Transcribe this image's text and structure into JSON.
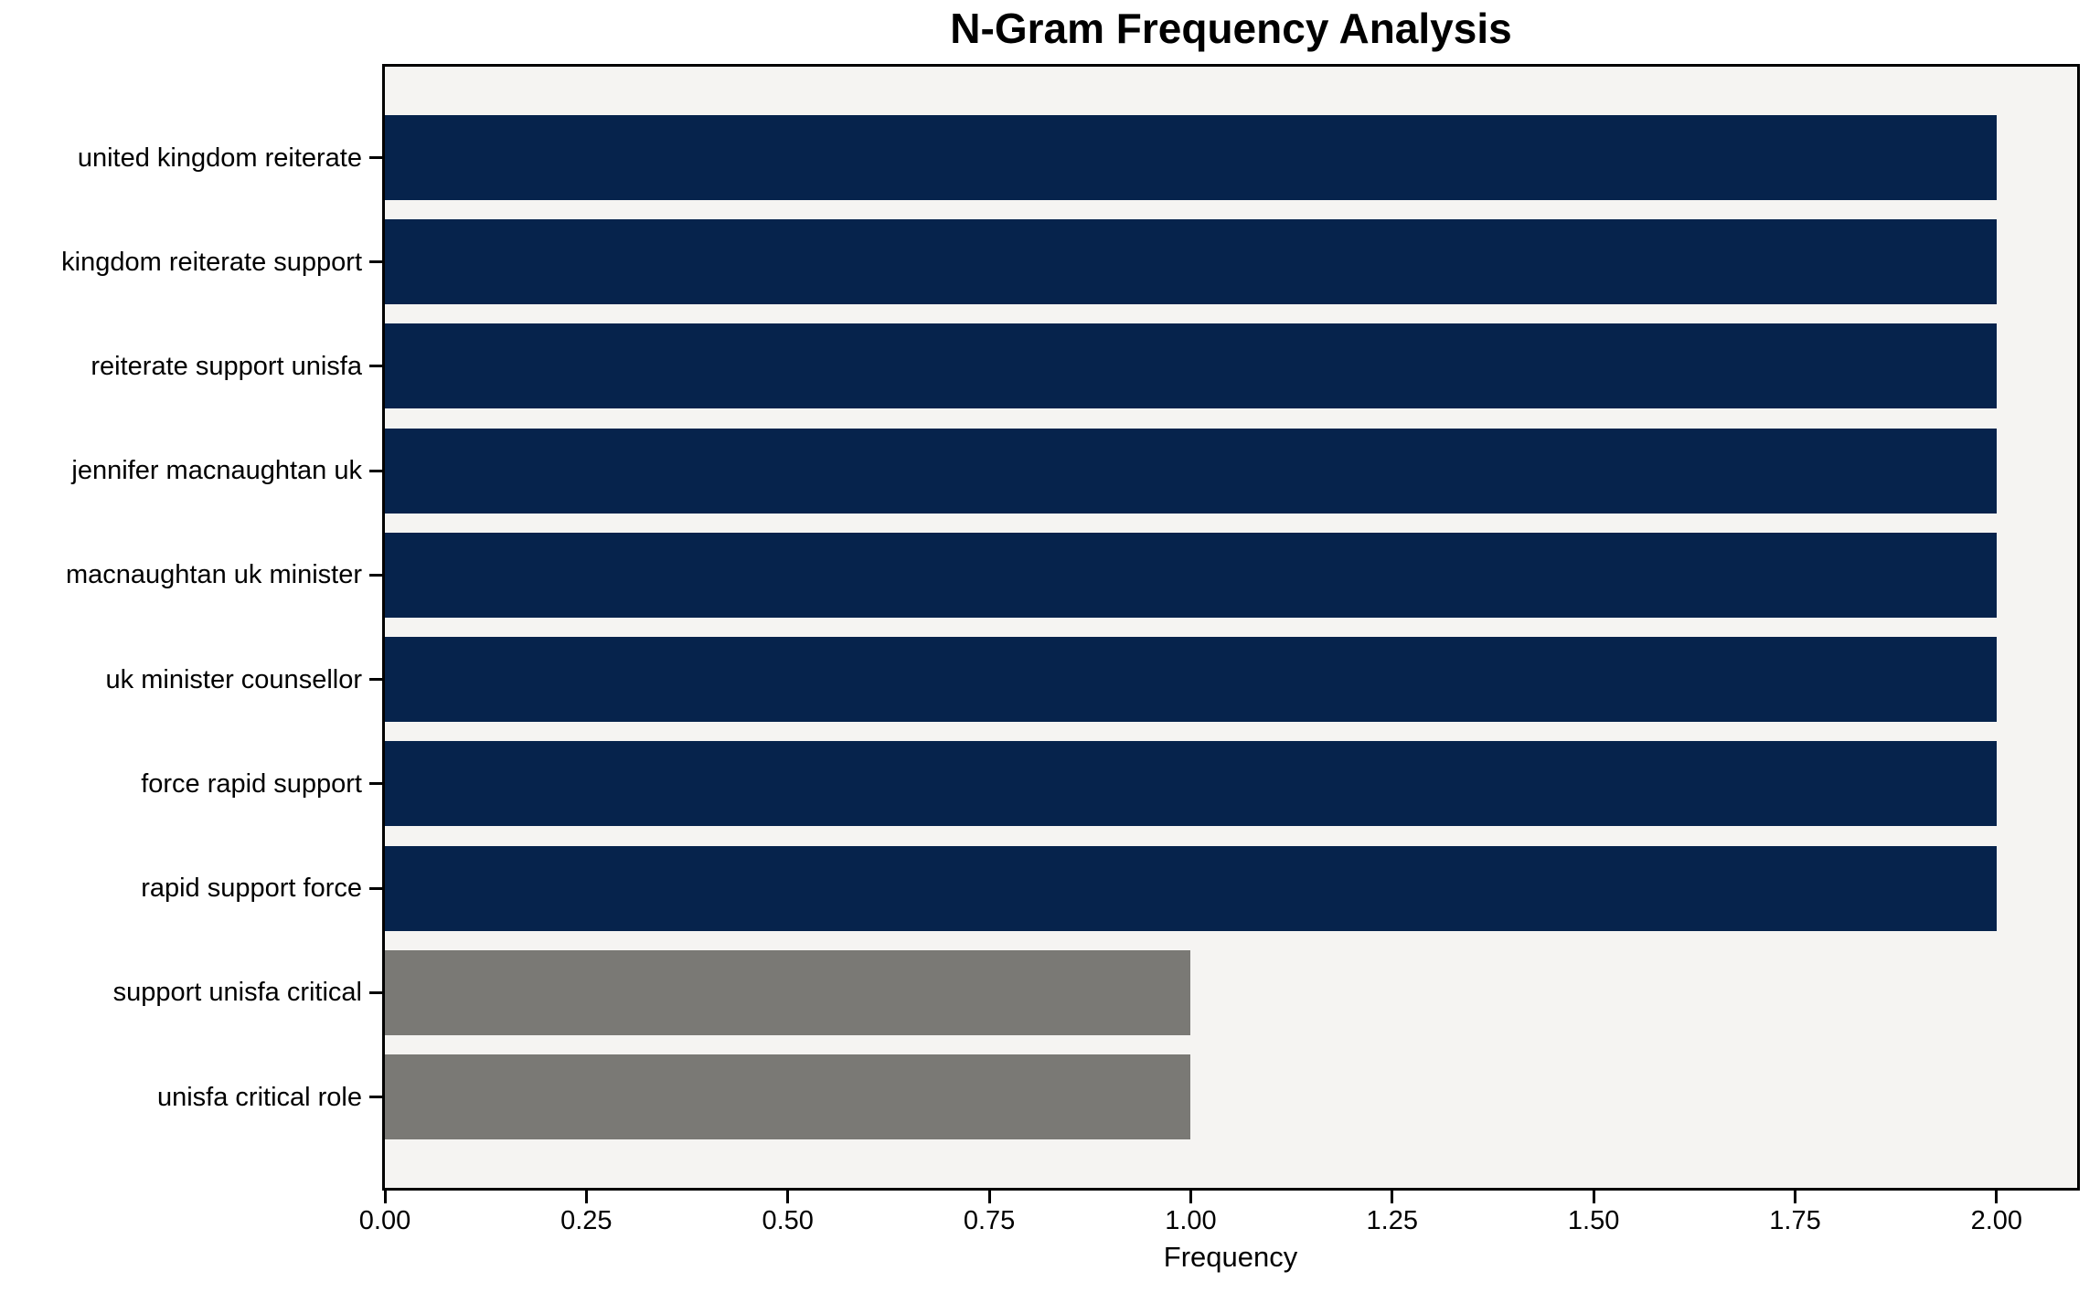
{
  "title": "N-Gram Frequency Analysis",
  "x_axis_label": "Frequency",
  "colors": {
    "navy_bar": "#06234c",
    "gray_bar": "#7a7975",
    "plot_background": "#f5f4f2",
    "figure_background": "#ffffff",
    "spine": "#000000",
    "text": "#000000"
  },
  "chart_data": {
    "type": "bar",
    "orientation": "horizontal",
    "title": "N-Gram Frequency Analysis",
    "xlabel": "Frequency",
    "ylabel": "",
    "categories": [
      "united kingdom reiterate",
      "kingdom reiterate support",
      "reiterate support unisfa",
      "jennifer macnaughtan uk",
      "macnaughtan uk minister",
      "uk minister counsellor",
      "force rapid support",
      "rapid support force",
      "support unisfa critical",
      "unisfa critical role"
    ],
    "values": [
      2,
      2,
      2,
      2,
      2,
      2,
      2,
      2,
      1,
      1
    ],
    "bar_colors": [
      "#06234c",
      "#06234c",
      "#06234c",
      "#06234c",
      "#06234c",
      "#06234c",
      "#06234c",
      "#06234c",
      "#7a7975",
      "#7a7975"
    ],
    "xlim": [
      0,
      2.1
    ],
    "xticks": [
      {
        "value": 0.0,
        "label": "0.00"
      },
      {
        "value": 0.25,
        "label": "0.25"
      },
      {
        "value": 0.5,
        "label": "0.50"
      },
      {
        "value": 0.75,
        "label": "0.75"
      },
      {
        "value": 1.0,
        "label": "1.00"
      },
      {
        "value": 1.25,
        "label": "1.25"
      },
      {
        "value": 1.5,
        "label": "1.50"
      },
      {
        "value": 1.75,
        "label": "1.75"
      },
      {
        "value": 2.0,
        "label": "2.00"
      }
    ],
    "grid": false,
    "legend": null
  }
}
